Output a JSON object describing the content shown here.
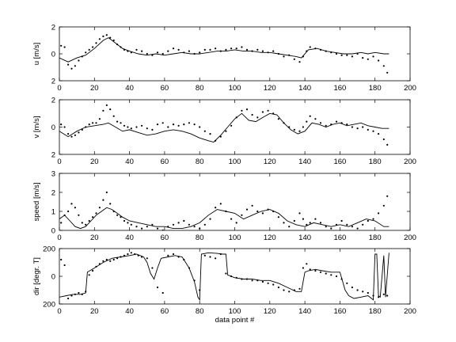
{
  "chart_data": [
    {
      "type": "line",
      "ylabel": "u [m/s]",
      "xlabel": "",
      "xlim": [
        0,
        200
      ],
      "ylim": [
        -2,
        2
      ],
      "xticks": [
        "0",
        "20",
        "40",
        "60",
        "80",
        "100",
        "120",
        "140",
        "160",
        "180",
        "200"
      ],
      "yticks": [
        {
          "v": 2,
          "label": "2"
        },
        {
          "v": 0,
          "label": "0"
        },
        {
          "v": -2,
          "label": "2"
        }
      ],
      "grid": false,
      "series": [
        {
          "style": "line",
          "x": [
            0,
            5,
            10,
            15,
            20,
            25,
            28,
            32,
            36,
            40,
            45,
            50,
            55,
            60,
            65,
            70,
            75,
            80,
            85,
            90,
            95,
            100,
            105,
            110,
            115,
            120,
            125,
            130,
            135,
            138,
            142,
            147,
            152,
            157,
            162,
            167,
            172,
            176,
            180,
            185,
            188
          ],
          "y": [
            -0.3,
            -0.6,
            -0.3,
            -0.1,
            0.4,
            1.0,
            1.2,
            0.8,
            0.4,
            0.2,
            0.0,
            -0.1,
            0.0,
            -0.1,
            0.0,
            0.1,
            0.0,
            0.0,
            0.1,
            0.2,
            0.2,
            0.3,
            0.2,
            0.2,
            0.1,
            0.1,
            0.0,
            -0.1,
            -0.2,
            -0.3,
            0.3,
            0.4,
            0.2,
            0.1,
            0.0,
            0.0,
            0.1,
            0.0,
            0.1,
            0.0,
            0.0
          ]
        },
        {
          "style": "dots",
          "x": [
            1,
            3,
            5,
            7,
            9,
            11,
            13,
            15,
            17,
            19,
            21,
            23,
            25,
            27,
            29,
            31,
            33,
            35,
            37,
            39,
            41,
            44,
            47,
            50,
            53,
            56,
            59,
            62,
            65,
            68,
            71,
            74,
            77,
            80,
            83,
            86,
            89,
            92,
            95,
            98,
            101,
            104,
            107,
            110,
            113,
            116,
            119,
            122,
            125,
            128,
            131,
            134,
            137,
            139,
            141,
            143,
            146,
            149,
            152,
            155,
            158,
            161,
            164,
            167,
            170,
            173,
            176,
            179,
            182,
            185,
            187
          ],
          "y": [
            0.6,
            0.5,
            -0.8,
            -1.1,
            -0.9,
            -0.5,
            -0.2,
            0.1,
            0.3,
            0.5,
            0.8,
            1.1,
            1.3,
            1.4,
            1.2,
            1.0,
            0.7,
            0.5,
            0.3,
            0.2,
            0.1,
            0.3,
            0.2,
            0.0,
            -0.1,
            0.1,
            0.0,
            0.2,
            0.4,
            0.3,
            0.1,
            0.2,
            0.0,
            0.1,
            0.3,
            0.3,
            0.4,
            0.2,
            0.3,
            0.4,
            0.4,
            0.5,
            0.3,
            0.2,
            0.3,
            0.2,
            0.1,
            0.2,
            0.0,
            -0.2,
            -0.1,
            -0.4,
            -0.6,
            -0.2,
            0.2,
            0.5,
            0.4,
            0.3,
            0.2,
            0.1,
            0.0,
            -0.1,
            -0.1,
            -0.2,
            0.0,
            -0.3,
            -0.4,
            -0.2,
            -0.5,
            -0.9,
            -1.4
          ]
        }
      ]
    },
    {
      "type": "line",
      "ylabel": "v [m/s]",
      "xlabel": "",
      "xlim": [
        0,
        200
      ],
      "ylim": [
        -2,
        2
      ],
      "xticks": [
        "0",
        "20",
        "40",
        "60",
        "80",
        "100",
        "120",
        "140",
        "160",
        "180",
        "200"
      ],
      "yticks": [
        {
          "v": 2,
          "label": "2"
        },
        {
          "v": 0,
          "label": "0"
        },
        {
          "v": -2,
          "label": "2"
        }
      ],
      "grid": false,
      "series": [
        {
          "style": "line",
          "x": [
            0,
            5,
            10,
            15,
            20,
            25,
            28,
            32,
            36,
            40,
            45,
            50,
            55,
            60,
            65,
            70,
            75,
            80,
            85,
            88,
            92,
            96,
            100,
            104,
            108,
            112,
            116,
            120,
            124,
            128,
            132,
            136,
            140,
            144,
            148,
            152,
            156,
            160,
            164,
            168,
            172,
            176,
            180,
            184,
            188
          ],
          "y": [
            -0.3,
            -0.7,
            -0.3,
            0.0,
            0.1,
            0.2,
            0.3,
            0.0,
            -0.3,
            -0.2,
            -0.4,
            -0.6,
            -0.5,
            -0.3,
            -0.2,
            -0.3,
            -0.5,
            -0.8,
            -1.0,
            -1.1,
            -0.6,
            0.0,
            0.6,
            1.0,
            0.5,
            0.4,
            0.7,
            1.0,
            0.9,
            0.3,
            -0.2,
            -0.5,
            -0.3,
            0.3,
            0.2,
            0.0,
            0.2,
            0.3,
            0.1,
            0.2,
            0.3,
            0.1,
            0.0,
            -0.1,
            -0.1
          ]
        },
        {
          "style": "dots",
          "x": [
            1,
            3,
            5,
            7,
            9,
            11,
            13,
            15,
            17,
            19,
            21,
            23,
            25,
            27,
            29,
            31,
            33,
            35,
            37,
            39,
            41,
            44,
            47,
            50,
            53,
            56,
            59,
            62,
            65,
            68,
            71,
            74,
            77,
            80,
            83,
            86,
            89,
            92,
            95,
            98,
            101,
            104,
            107,
            110,
            113,
            116,
            119,
            122,
            125,
            128,
            131,
            134,
            137,
            139,
            141,
            143,
            146,
            149,
            152,
            155,
            158,
            161,
            164,
            167,
            170,
            173,
            176,
            179,
            182,
            185,
            187
          ],
          "y": [
            0.2,
            0.0,
            -0.5,
            -0.7,
            -0.6,
            -0.4,
            -0.2,
            0.0,
            0.2,
            0.3,
            0.3,
            0.6,
            1.2,
            1.6,
            1.3,
            0.8,
            0.4,
            0.3,
            0.1,
            0.0,
            -0.1,
            0.0,
            0.1,
            -0.1,
            -0.2,
            0.2,
            0.3,
            0.0,
            0.2,
            0.1,
            0.2,
            0.3,
            0.2,
            0.0,
            -0.3,
            -0.5,
            -1.0,
            -0.7,
            -0.3,
            0.1,
            0.7,
            1.2,
            1.3,
            0.9,
            0.7,
            1.1,
            1.2,
            1.0,
            0.6,
            0.3,
            0.0,
            -0.2,
            -0.3,
            0.0,
            0.4,
            0.8,
            0.6,
            0.3,
            0.1,
            0.2,
            0.4,
            0.3,
            0.2,
            0.0,
            -0.1,
            0.0,
            -0.2,
            -0.3,
            -0.5,
            -0.9,
            -1.3
          ]
        }
      ]
    },
    {
      "type": "line",
      "ylabel": "speed [m/s]",
      "xlabel": "",
      "xlim": [
        0,
        200
      ],
      "ylim": [
        0,
        3
      ],
      "xticks": [
        "0",
        "20",
        "40",
        "60",
        "80",
        "100",
        "120",
        "140",
        "160",
        "180",
        "200"
      ],
      "yticks": [
        {
          "v": 3,
          "label": "3"
        },
        {
          "v": 2,
          "label": "2"
        },
        {
          "v": 1,
          "label": "1"
        },
        {
          "v": 0,
          "label": "0"
        }
      ],
      "grid": false,
      "series": [
        {
          "style": "line",
          "x": [
            0,
            3,
            6,
            9,
            12,
            15,
            18,
            21,
            24,
            27,
            30,
            33,
            36,
            40,
            45,
            50,
            55,
            60,
            65,
            70,
            75,
            80,
            85,
            90,
            95,
            100,
            105,
            110,
            115,
            120,
            125,
            130,
            135,
            140,
            145,
            150,
            155,
            160,
            165,
            170,
            175,
            180,
            185,
            188
          ],
          "y": [
            0.6,
            0.8,
            0.5,
            0.2,
            0.1,
            0.2,
            0.5,
            0.8,
            1.0,
            1.2,
            1.1,
            0.9,
            0.7,
            0.5,
            0.4,
            0.3,
            0.2,
            0.2,
            0.1,
            0.1,
            0.2,
            0.4,
            0.8,
            1.1,
            1.0,
            0.9,
            0.6,
            0.8,
            1.0,
            1.1,
            0.9,
            0.5,
            0.3,
            0.2,
            0.4,
            0.3,
            0.2,
            0.3,
            0.2,
            0.4,
            0.6,
            0.5,
            0.2,
            0.2
          ]
        },
        {
          "style": "dots",
          "x": [
            1,
            3,
            5,
            7,
            9,
            11,
            13,
            15,
            17,
            19,
            21,
            23,
            25,
            27,
            29,
            31,
            33,
            35,
            37,
            39,
            41,
            44,
            47,
            50,
            53,
            56,
            59,
            62,
            65,
            68,
            71,
            74,
            77,
            80,
            83,
            86,
            89,
            92,
            95,
            98,
            101,
            104,
            107,
            110,
            113,
            116,
            119,
            122,
            125,
            128,
            131,
            134,
            137,
            139,
            141,
            143,
            146,
            149,
            152,
            155,
            158,
            161,
            164,
            167,
            170,
            173,
            176,
            179,
            182,
            185,
            187
          ],
          "y": [
            0.4,
            0.8,
            1.0,
            1.4,
            1.2,
            0.8,
            0.4,
            0.3,
            0.5,
            0.7,
            0.9,
            1.2,
            1.6,
            2.0,
            1.4,
            1.0,
            0.8,
            0.7,
            0.5,
            0.4,
            0.3,
            0.2,
            0.1,
            0.2,
            0.3,
            0.1,
            0.0,
            0.2,
            0.3,
            0.4,
            0.5,
            0.3,
            0.2,
            0.1,
            0.3,
            0.6,
            1.2,
            1.4,
            1.0,
            0.6,
            0.4,
            0.8,
            1.1,
            1.3,
            1.0,
            0.9,
            1.1,
            1.0,
            0.7,
            0.4,
            0.2,
            0.5,
            0.9,
            0.6,
            0.3,
            0.4,
            0.6,
            0.4,
            0.2,
            0.1,
            0.3,
            0.5,
            0.3,
            0.2,
            0.1,
            0.3,
            0.5,
            0.6,
            0.9,
            1.3,
            1.8
          ]
        }
      ]
    },
    {
      "type": "line",
      "ylabel": "dir [degr. T]",
      "xlabel": "data point #",
      "xlim": [
        0,
        200
      ],
      "ylim": [
        -200,
        200
      ],
      "xticks": [
        "0",
        "20",
        "40",
        "60",
        "80",
        "100",
        "120",
        "140",
        "160",
        "180",
        "200"
      ],
      "yticks": [
        {
          "v": 200,
          "label": "200"
        },
        {
          "v": 0,
          "label": "0"
        },
        {
          "v": -200,
          "label": "200"
        }
      ],
      "grid": false,
      "series": [
        {
          "style": "line",
          "x": [
            0,
            4,
            8,
            12,
            15,
            16,
            20,
            25,
            30,
            35,
            40,
            44,
            48,
            50,
            52,
            54,
            56,
            58,
            62,
            66,
            70,
            74,
            77,
            79,
            80,
            81,
            85,
            90,
            93,
            95,
            96,
            100,
            105,
            110,
            115,
            120,
            125,
            130,
            135,
            138,
            139,
            140,
            142,
            146,
            150,
            155,
            160,
            163,
            165,
            168,
            172,
            176,
            178,
            179,
            180,
            181,
            182,
            183,
            185,
            186,
            188
          ],
          "y": [
            -150,
            -140,
            -130,
            -130,
            -120,
            30,
            60,
            100,
            130,
            140,
            150,
            160,
            140,
            100,
            20,
            -20,
            60,
            130,
            140,
            150,
            140,
            60,
            -40,
            -150,
            -170,
            160,
            170,
            165,
            160,
            160,
            10,
            -10,
            -20,
            -20,
            -30,
            -30,
            -50,
            -80,
            -110,
            -110,
            -40,
            30,
            40,
            50,
            40,
            30,
            30,
            -100,
            -140,
            -160,
            -150,
            -140,
            -160,
            -170,
            160,
            160,
            -140,
            -150,
            150,
            -150,
            170
          ]
        },
        {
          "style": "dots",
          "x": [
            1,
            3,
            5,
            7,
            9,
            11,
            13,
            15,
            17,
            19,
            21,
            23,
            25,
            27,
            29,
            31,
            33,
            35,
            37,
            39,
            41,
            43,
            45,
            47,
            50,
            53,
            56,
            59,
            62,
            65,
            68,
            71,
            74,
            77,
            80,
            83,
            86,
            89,
            92,
            95,
            98,
            101,
            104,
            107,
            110,
            113,
            116,
            119,
            122,
            125,
            128,
            131,
            134,
            137,
            139,
            141,
            143,
            146,
            149,
            152,
            155,
            158,
            161,
            164,
            167,
            170,
            173,
            176,
            179,
            182,
            185,
            187
          ],
          "y": [
            120,
            80,
            -160,
            -140,
            -130,
            -120,
            -130,
            -110,
            10,
            40,
            70,
            90,
            110,
            120,
            110,
            120,
            130,
            140,
            150,
            160,
            170,
            160,
            150,
            140,
            130,
            60,
            -80,
            -120,
            150,
            160,
            140,
            120,
            60,
            -30,
            -100,
            150,
            140,
            130,
            160,
            20,
            0,
            -10,
            -20,
            -20,
            -30,
            -30,
            -40,
            -50,
            -60,
            -80,
            -100,
            -110,
            -100,
            -90,
            60,
            90,
            50,
            40,
            30,
            20,
            10,
            0,
            -20,
            -50,
            -80,
            -100,
            -110,
            -120,
            -140,
            -150,
            -130,
            -140
          ]
        }
      ]
    }
  ]
}
